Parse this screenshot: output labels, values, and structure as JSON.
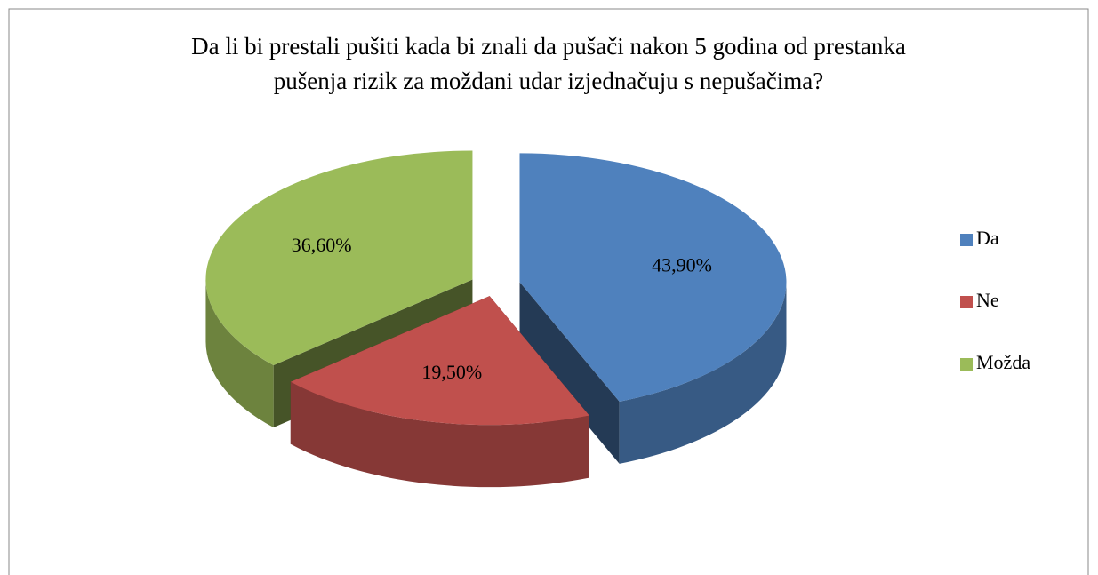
{
  "chart_data": {
    "type": "pie",
    "title": [
      "Da li bi prestali pušiti kada bi znali da pušači nakon 5 godina od prestanka",
      "pušenja rizik za moždani udar izjednačuju s nepušačima?"
    ],
    "categories": [
      "Da",
      "Ne",
      "Možda"
    ],
    "values": [
      43.9,
      19.5,
      36.6
    ],
    "value_labels": [
      "43,90%",
      "19,50%",
      "36,60%"
    ],
    "colors": [
      "#4f81bd",
      "#c0504d",
      "#9bbb59"
    ],
    "legend": "right"
  }
}
